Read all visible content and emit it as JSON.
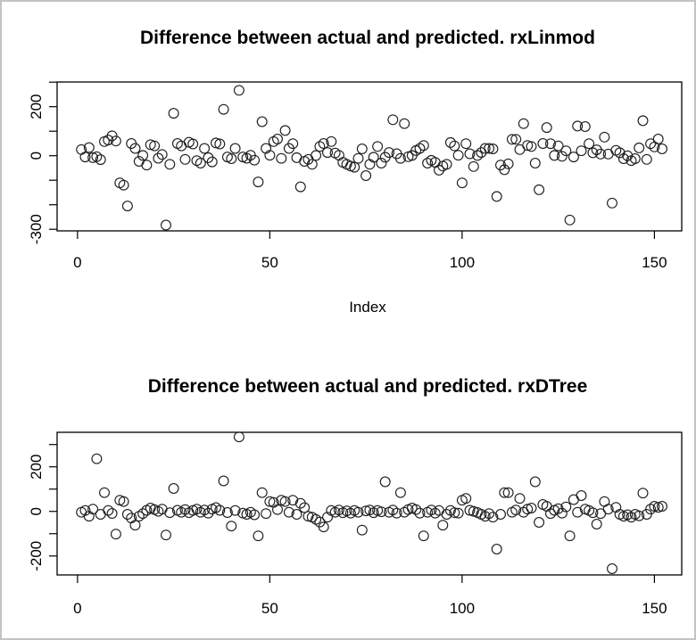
{
  "window": {
    "background": "#ffffff",
    "frame_border_color": "#c3c3c3",
    "axis_color": "#000000",
    "marker_color": "#1f1f1f"
  },
  "chart_data": [
    {
      "type": "scatter",
      "title": "Difference between actual and predicted. rxLinmod",
      "xlabel": "Index",
      "ylabel": "",
      "marker": "open-circle",
      "grid": false,
      "legend": null,
      "x_is_index": true,
      "n": 152,
      "xlim": [
        -5.3,
        157.1
      ],
      "ylim": [
        -306.5,
        300.7
      ],
      "x_ticks": [
        0,
        50,
        100,
        150
      ],
      "x_tick_labels": [
        "0",
        "50",
        "100",
        "150"
      ],
      "y_ticks": [
        -300,
        -200,
        -100,
        0,
        100,
        200,
        300
      ],
      "y_tick_labels": {
        "-300": "-300",
        "0": "0",
        "200": "200"
      },
      "values": [
        25,
        -5,
        33,
        -8,
        -4,
        -16,
        58,
        64,
        81,
        60,
        -111,
        -120,
        -205,
        50,
        30,
        -23,
        1,
        -38,
        45,
        40,
        -10,
        5,
        -283,
        -35,
        173,
        50,
        40,
        -15,
        55,
        48,
        -20,
        -30,
        30,
        -8,
        -25,
        52,
        48,
        189,
        -5,
        -12,
        30,
        267,
        -5,
        -10,
        2,
        -18,
        -107,
        139,
        30,
        2,
        58,
        68,
        -11,
        103,
        30,
        49,
        -8,
        -127,
        -23,
        -15,
        -35,
        1,
        38,
        50,
        13,
        58,
        11,
        2,
        -27,
        -35,
        -42,
        -47,
        -11,
        28,
        -81,
        -35,
        -6,
        38,
        -30,
        -6,
        13,
        147,
        8,
        -11,
        131,
        -4,
        1,
        21,
        30,
        42,
        -30,
        -19,
        -27,
        -59,
        -42,
        -35,
        54,
        40,
        2,
        -111,
        49,
        8,
        -44,
        1,
        13,
        30,
        30,
        28,
        -166,
        -38,
        -57,
        -33,
        67,
        67,
        25,
        131,
        42,
        38,
        -30,
        -139,
        50,
        115,
        49,
        1,
        40,
        -2,
        20,
        -262,
        -5,
        121,
        20,
        119,
        49,
        12,
        24,
        7,
        76,
        7,
        -193,
        22,
        12,
        -12,
        0,
        -20,
        -12,
        32,
        143,
        -15,
        49,
        36,
        68,
        28
      ]
    },
    {
      "type": "scatter",
      "title": "Difference between actual and predicted. rxDTree",
      "xlabel": "",
      "ylabel": "",
      "marker": "open-circle",
      "grid": false,
      "legend": null,
      "x_is_index": true,
      "n": 152,
      "xlim": [
        -5.3,
        157.1
      ],
      "ylim": [
        -285.0,
        354.8
      ],
      "x_ticks": [
        0,
        50,
        100,
        150
      ],
      "x_tick_labels": [
        "0",
        "50",
        "100",
        "150"
      ],
      "y_ticks": [
        -200,
        -100,
        0,
        100,
        200,
        300
      ],
      "y_tick_labels": {
        "-200": "-200",
        "0": "0",
        "200": "200"
      },
      "values": [
        -4,
        4,
        -22,
        10,
        236,
        -13,
        84,
        4,
        -9,
        -102,
        50,
        44,
        -13,
        -30,
        -62,
        -22,
        -10,
        5,
        15,
        8,
        0,
        10,
        -106,
        -6,
        103,
        5,
        -4,
        8,
        -6,
        4,
        10,
        -4,
        6,
        -8,
        10,
        17,
        5,
        137,
        -5,
        -66,
        4,
        334,
        -8,
        -13,
        -4,
        -15,
        -110,
        84,
        -10,
        44,
        40,
        8,
        50,
        44,
        -4,
        50,
        -13,
        36,
        17,
        -22,
        -26,
        -36,
        -48,
        -70,
        -26,
        4,
        -4,
        6,
        -6,
        2,
        -8,
        4,
        -4,
        -84,
        2,
        6,
        -6,
        4,
        -2,
        133,
        -4,
        6,
        -8,
        84,
        -4,
        8,
        15,
        8,
        -8,
        -110,
        -4,
        6,
        -8,
        4,
        -62,
        -13,
        4,
        -6,
        -8,
        50,
        58,
        5,
        0,
        -5,
        -13,
        -22,
        -10,
        -26,
        -169,
        -13,
        84,
        84,
        -4,
        6,
        58,
        -4,
        10,
        15,
        133,
        -49,
        31,
        23,
        -10,
        5,
        12,
        -8,
        20,
        -110,
        53,
        -4,
        71,
        10,
        4,
        -6,
        -57,
        -10,
        44,
        10,
        -257,
        18,
        -13,
        -22,
        -15,
        -26,
        -13,
        -20,
        82,
        -13,
        10,
        23,
        18,
        23
      ]
    }
  ]
}
